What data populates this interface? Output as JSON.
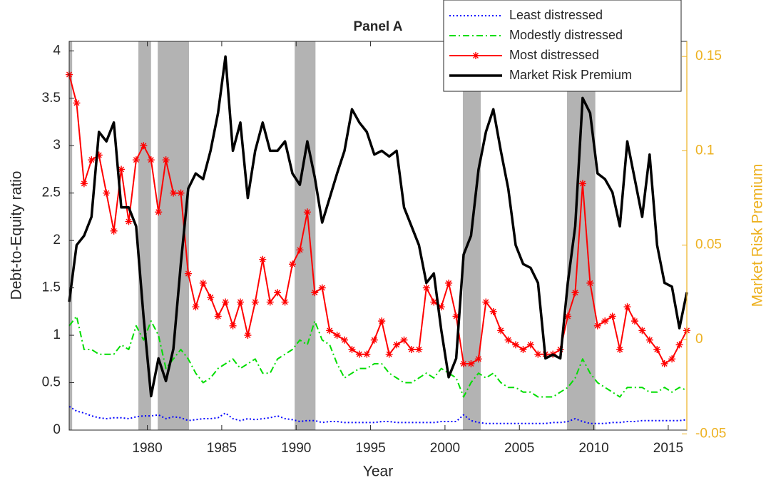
{
  "chart_data": {
    "type": "line",
    "title": "Panel A",
    "x_label": "Year",
    "y_label": "Debt-to-Equity ratio",
    "y2_label": "Market Risk Premium",
    "y2_color": "#edb120",
    "xlim": [
      1974.75,
      2016.25
    ],
    "xticks": [
      1980,
      1985,
      1990,
      1995,
      2000,
      2005,
      2010,
      2015
    ],
    "ylim": [
      0,
      4.1
    ],
    "yticks": [
      0,
      0.5,
      1,
      1.5,
      2,
      2.5,
      3,
      3.5,
      4
    ],
    "y2lim": [
      -0.048,
      0.158
    ],
    "y2ticks": [
      -0.05,
      0,
      0.05,
      0.1,
      0.15
    ],
    "legend_position": "upper right",
    "shaded_color": "#b3b3b3",
    "shaded": [
      [
        1974.75,
        1974.95
      ],
      [
        1979.4,
        1980.25
      ],
      [
        1980.7,
        1982.8
      ],
      [
        1989.9,
        1991.3
      ],
      [
        2001.2,
        2002.4
      ],
      [
        2008.2,
        2010.1
      ]
    ],
    "x": [
      1974.75,
      1975.25,
      1975.75,
      1976.25,
      1976.75,
      1977.25,
      1977.75,
      1978.25,
      1978.75,
      1979.25,
      1979.75,
      1980.25,
      1980.75,
      1981.25,
      1981.75,
      1982.25,
      1982.75,
      1983.25,
      1983.75,
      1984.25,
      1984.75,
      1985.25,
      1985.75,
      1986.25,
      1986.75,
      1987.25,
      1987.75,
      1988.25,
      1988.75,
      1989.25,
      1989.75,
      1990.25,
      1990.75,
      1991.25,
      1991.75,
      1992.25,
      1992.75,
      1993.25,
      1993.75,
      1994.25,
      1994.75,
      1995.25,
      1995.75,
      1996.25,
      1996.75,
      1997.25,
      1997.75,
      1998.25,
      1998.75,
      1999.25,
      1999.75,
      2000.25,
      2000.75,
      2001.25,
      2001.75,
      2002.25,
      2002.75,
      2003.25,
      2003.75,
      2004.25,
      2004.75,
      2005.25,
      2005.75,
      2006.25,
      2006.75,
      2007.25,
      2007.75,
      2008.25,
      2008.75,
      2009.25,
      2009.75,
      2010.25,
      2010.75,
      2011.25,
      2011.75,
      2012.25,
      2012.75,
      2013.25,
      2013.75,
      2014.25,
      2014.75,
      2015.25,
      2015.75,
      2016.25
    ],
    "series": [
      {
        "name": "Least distressed",
        "color": "#0000ff",
        "line_style": "dotted",
        "width": 2,
        "values": [
          0.25,
          0.2,
          0.18,
          0.15,
          0.13,
          0.12,
          0.13,
          0.13,
          0.12,
          0.14,
          0.15,
          0.15,
          0.16,
          0.12,
          0.14,
          0.13,
          0.1,
          0.11,
          0.12,
          0.12,
          0.13,
          0.18,
          0.12,
          0.1,
          0.12,
          0.11,
          0.12,
          0.13,
          0.15,
          0.12,
          0.11,
          0.09,
          0.1,
          0.1,
          0.08,
          0.09,
          0.09,
          0.08,
          0.08,
          0.08,
          0.08,
          0.08,
          0.09,
          0.09,
          0.08,
          0.08,
          0.08,
          0.08,
          0.08,
          0.08,
          0.09,
          0.09,
          0.09,
          0.16,
          0.1,
          0.08,
          0.07,
          0.07,
          0.07,
          0.07,
          0.07,
          0.07,
          0.07,
          0.07,
          0.07,
          0.08,
          0.08,
          0.09,
          0.12,
          0.09,
          0.07,
          0.07,
          0.07,
          0.08,
          0.08,
          0.09,
          0.09,
          0.1,
          0.1,
          0.1,
          0.1,
          0.1,
          0.1,
          0.11
        ]
      },
      {
        "name": "Modestly distressed",
        "color": "#00dd00",
        "line_style": "dashdot",
        "width": 2,
        "values": [
          1.1,
          1.2,
          0.85,
          0.85,
          0.8,
          0.8,
          0.8,
          0.9,
          0.85,
          1.1,
          0.95,
          1.15,
          1.0,
          0.65,
          0.75,
          0.85,
          0.75,
          0.6,
          0.5,
          0.55,
          0.65,
          0.7,
          0.75,
          0.65,
          0.7,
          0.75,
          0.6,
          0.6,
          0.75,
          0.8,
          0.85,
          0.95,
          0.9,
          1.15,
          0.95,
          0.9,
          0.7,
          0.55,
          0.6,
          0.65,
          0.65,
          0.7,
          0.7,
          0.6,
          0.55,
          0.5,
          0.5,
          0.55,
          0.6,
          0.55,
          0.65,
          0.6,
          0.55,
          0.35,
          0.5,
          0.6,
          0.55,
          0.6,
          0.5,
          0.45,
          0.45,
          0.4,
          0.4,
          0.35,
          0.35,
          0.35,
          0.4,
          0.45,
          0.55,
          0.75,
          0.6,
          0.5,
          0.45,
          0.4,
          0.35,
          0.45,
          0.45,
          0.45,
          0.4,
          0.4,
          0.45,
          0.4,
          0.45,
          0.42
        ]
      },
      {
        "name": "Most distressed",
        "color": "#ff0000",
        "line_style": "solid",
        "width": 2,
        "marker": "asterisk",
        "values": [
          3.75,
          3.45,
          2.6,
          2.85,
          2.9,
          2.5,
          2.1,
          2.75,
          2.2,
          2.85,
          3.0,
          2.85,
          2.3,
          2.85,
          2.5,
          2.5,
          1.65,
          1.3,
          1.55,
          1.4,
          1.2,
          1.35,
          1.1,
          1.35,
          1.0,
          1.35,
          1.8,
          1.35,
          1.45,
          1.35,
          1.75,
          1.9,
          2.3,
          1.45,
          1.5,
          1.05,
          1.0,
          0.95,
          0.85,
          0.8,
          0.8,
          0.95,
          1.15,
          0.8,
          0.9,
          0.95,
          0.85,
          0.85,
          1.5,
          1.35,
          1.3,
          1.55,
          1.2,
          0.7,
          0.7,
          0.75,
          1.35,
          1.25,
          1.05,
          0.95,
          0.9,
          0.85,
          0.9,
          0.8,
          0.8,
          0.8,
          0.85,
          1.2,
          1.45,
          2.6,
          1.55,
          1.1,
          1.15,
          1.2,
          0.85,
          1.3,
          1.15,
          1.05,
          0.95,
          0.85,
          0.7,
          0.75,
          0.9,
          1.05
        ]
      },
      {
        "name": "Market Risk Premium",
        "color": "#000000",
        "line_style": "solid",
        "width": 3.5,
        "axis": "y2",
        "values": [
          0.02,
          0.05,
          0.055,
          0.065,
          0.11,
          0.105,
          0.115,
          0.07,
          0.07,
          0.06,
          0.012,
          -0.03,
          -0.01,
          -0.022,
          -0.005,
          0.04,
          0.08,
          0.088,
          0.085,
          0.1,
          0.12,
          0.15,
          0.1,
          0.115,
          0.075,
          0.1,
          0.115,
          0.1,
          0.1,
          0.105,
          0.088,
          0.082,
          0.105,
          0.086,
          0.062,
          0.075,
          0.088,
          0.1,
          0.122,
          0.115,
          0.11,
          0.098,
          0.1,
          0.097,
          0.1,
          0.07,
          0.06,
          0.05,
          0.03,
          0.035,
          0.005,
          -0.02,
          -0.01,
          0.045,
          0.055,
          0.09,
          0.11,
          0.122,
          0.1,
          0.08,
          0.05,
          0.04,
          0.038,
          0.03,
          -0.01,
          -0.008,
          -0.01,
          0.03,
          0.06,
          0.128,
          0.12,
          0.088,
          0.085,
          0.078,
          0.06,
          0.105,
          0.085,
          0.065,
          0.098,
          0.05,
          0.03,
          0.028,
          0.006,
          0.025
        ]
      }
    ]
  }
}
